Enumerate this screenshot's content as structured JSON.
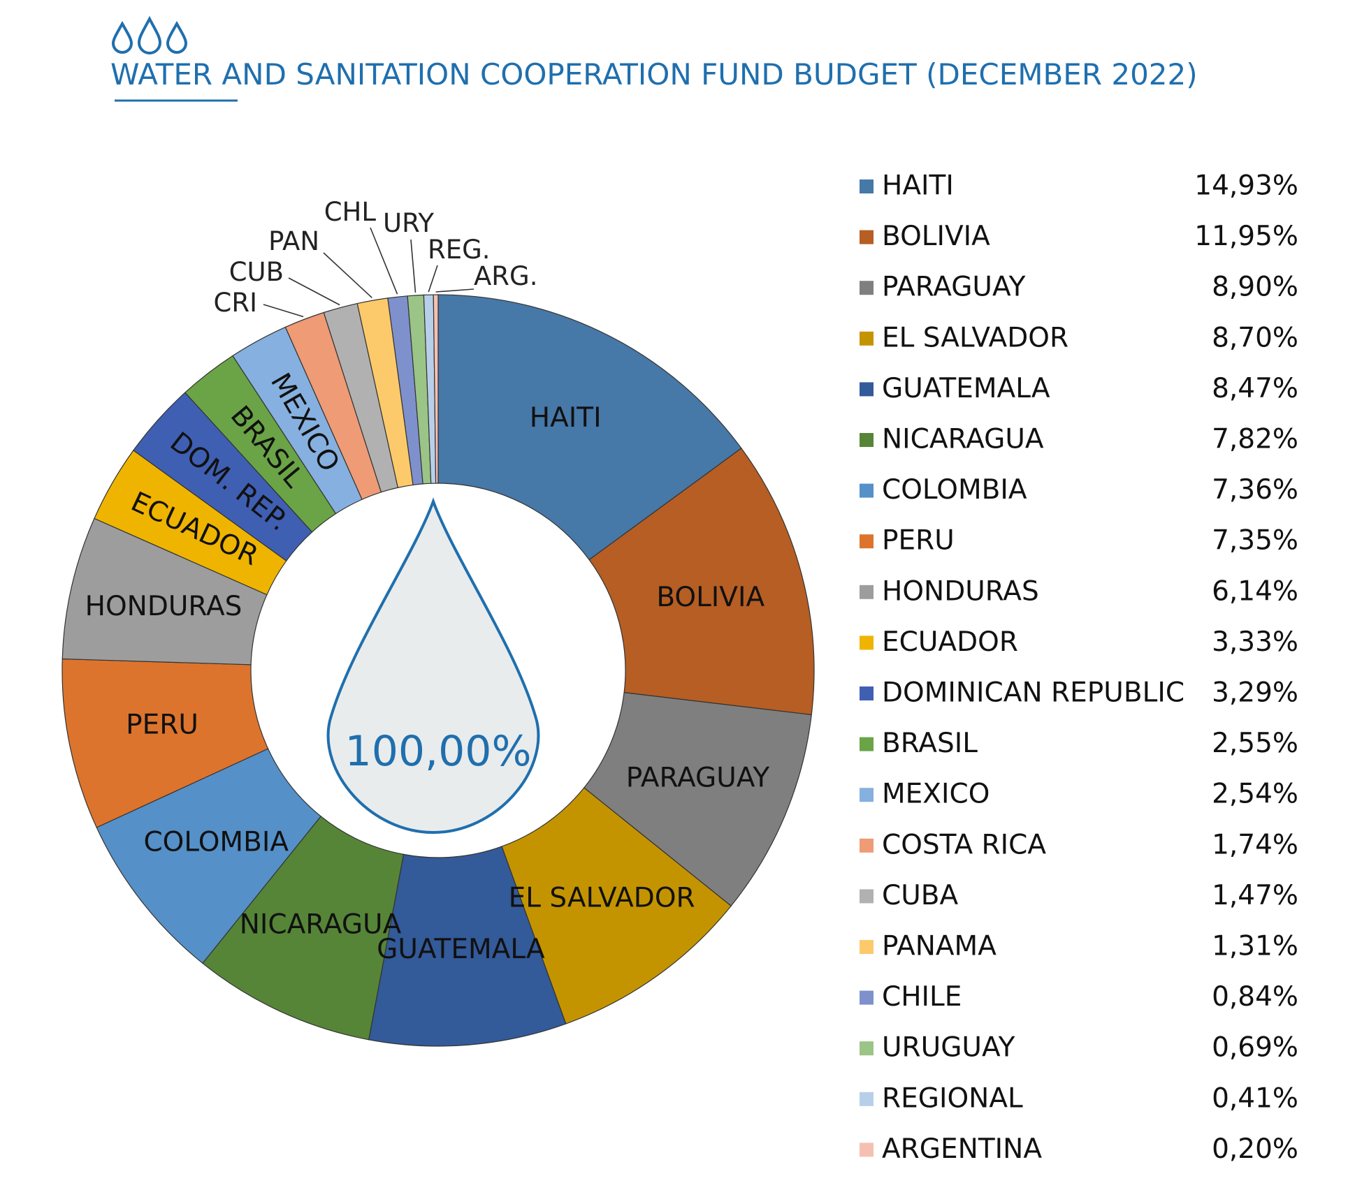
{
  "header": {
    "title": "WATER AND SANITATION COOPERATION FUND BUDGET (DECEMBER 2022)",
    "icon": "three-water-drops-icon",
    "accent_color": "#1f6fae"
  },
  "center": {
    "total_label": "100,00%",
    "icon": "water-drop-icon",
    "drop_fill": "#e9ecec"
  },
  "chart_data": {
    "type": "donut",
    "title": "WATER AND SANITATION COOPERATION FUND BUDGET (DECEMBER 2022)",
    "legend_position": "right",
    "categories": [
      "HAITI",
      "BOLIVIA",
      "PARAGUAY",
      "EL SALVADOR",
      "GUATEMALA",
      "NICARAGUA",
      "COLOMBIA",
      "PERU",
      "HONDURAS",
      "ECUADOR",
      "DOMINICAN REPUBLIC",
      "BRASIL",
      "MEXICO",
      "COSTA RICA",
      "CUBA",
      "PANAMA",
      "CHILE",
      "URUGUAY",
      "REGIONAL",
      "ARGENTINA"
    ],
    "segment_labels": [
      "HAITI",
      "BOLIVIA",
      "PARAGUAY",
      "EL SALVADOR",
      "GUATEMALA",
      "NICARAGUA",
      "COLOMBIA",
      "PERU",
      "HONDURAS",
      "ECUADOR",
      "DOM. REP.",
      "BRASIL",
      "MEXICO",
      "CRI",
      "CUB",
      "PAN",
      "CHL",
      "URY",
      "REG.",
      "ARG."
    ],
    "values": [
      14.93,
      11.95,
      8.9,
      8.7,
      8.47,
      7.82,
      7.36,
      7.35,
      6.14,
      3.33,
      3.29,
      2.55,
      2.54,
      1.74,
      1.47,
      1.31,
      0.84,
      0.69,
      0.41,
      0.2
    ],
    "value_labels": [
      "14,93%",
      "11,95%",
      "8,90%",
      "8,70%",
      "8,47%",
      "7,82%",
      "7,36%",
      "7,35%",
      "6,14%",
      "3,33%",
      "3,29%",
      "2,55%",
      "2,54%",
      "1,74%",
      "1,47%",
      "1,31%",
      "0,84%",
      "0,69%",
      "0,41%",
      "0,20%"
    ],
    "colors": [
      "#4678a8",
      "#b65e23",
      "#7f7f7f",
      "#c49400",
      "#335a99",
      "#568538",
      "#5590c8",
      "#dd742d",
      "#9d9d9d",
      "#efb400",
      "#3f5fb3",
      "#6aa446",
      "#86b0df",
      "#ee9b76",
      "#b1b1b1",
      "#fcca6a",
      "#7e91cd",
      "#9bc487",
      "#b8cfea",
      "#f5c0b2"
    ]
  }
}
